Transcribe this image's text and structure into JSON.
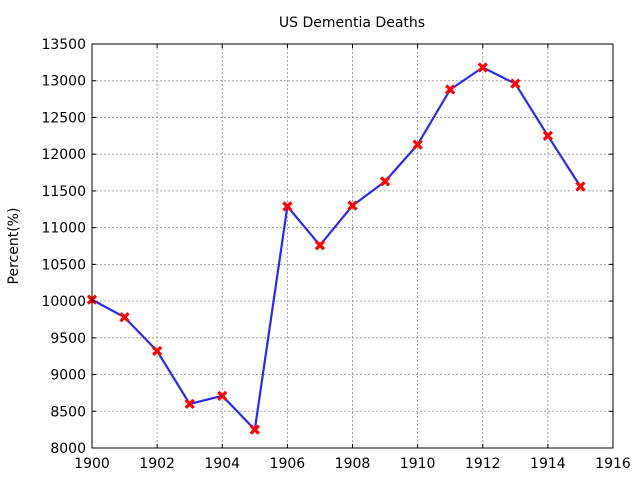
{
  "chart_data": {
    "type": "line",
    "title": "US Dementia Deaths",
    "xlabel": "",
    "ylabel": "Percent(%)",
    "xlim": [
      1900,
      1916
    ],
    "ylim": [
      8000,
      13500
    ],
    "xticks": [
      "1900",
      "1902",
      "1904",
      "1906",
      "1908",
      "1910",
      "1912",
      "1914",
      "1916"
    ],
    "yticks": [
      "8000",
      "8500",
      "9000",
      "9500",
      "10000",
      "10500",
      "11000",
      "11500",
      "12000",
      "12500",
      "13000",
      "13500"
    ],
    "grid": true,
    "series": [
      {
        "x": [
          1900,
          1901,
          1902,
          1903,
          1904,
          1905,
          1906,
          1907,
          1908,
          1909,
          1910,
          1911,
          1912,
          1913,
          1914,
          1915
        ],
        "y": [
          10020,
          9780,
          9320,
          8600,
          8710,
          8250,
          11290,
          10760,
          11300,
          11630,
          12130,
          12880,
          13180,
          12960,
          12250,
          11560
        ],
        "line_color": "#2a2aee",
        "marker": "x",
        "marker_color": "#ff0000"
      }
    ]
  }
}
